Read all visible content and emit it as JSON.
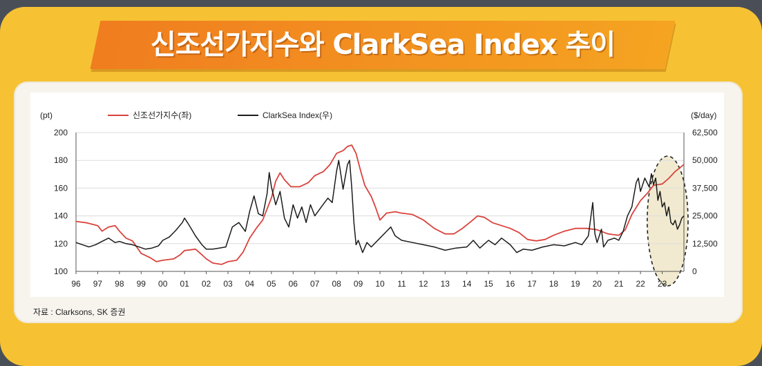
{
  "title": "신조선가지수와 ClarkSea Index 추이",
  "source": "자료 : Clarksons, SK 증권",
  "chart_data": {
    "type": "line",
    "left_axis_unit": "(pt)",
    "right_axis_unit": "($/day)",
    "left_ylim": [
      100,
      200
    ],
    "right_ylim": [
      0,
      62500
    ],
    "left_ticks": [
      "100",
      "120",
      "140",
      "160",
      "180",
      "200"
    ],
    "right_ticks": [
      "0",
      "12,500",
      "25,000",
      "37,500",
      "50,000",
      "62,500"
    ],
    "x_tick_labels": [
      "96",
      "97",
      "98",
      "99",
      "00",
      "01",
      "02",
      "03",
      "04",
      "05",
      "06",
      "07",
      "08",
      "09",
      "10",
      "11",
      "12",
      "13",
      "14",
      "15",
      "16",
      "17",
      "18",
      "19",
      "20",
      "21",
      "22",
      "23"
    ],
    "xlim": [
      1996,
      2024
    ],
    "grid": true,
    "legend_position": "top",
    "highlight": {
      "shape": "dashed-ellipse",
      "x_range": [
        2022.5,
        2024.0
      ]
    },
    "series": [
      {
        "name": "신조선가지수(좌)",
        "axis": "left",
        "color": "#d9423c",
        "points": [
          [
            1996.0,
            136
          ],
          [
            1996.5,
            135
          ],
          [
            1997.0,
            133
          ],
          [
            1997.2,
            129
          ],
          [
            1997.5,
            132
          ],
          [
            1997.8,
            133
          ],
          [
            1998.0,
            129
          ],
          [
            1998.3,
            124
          ],
          [
            1998.6,
            122
          ],
          [
            1999.0,
            113
          ],
          [
            1999.4,
            110
          ],
          [
            1999.7,
            107
          ],
          [
            2000.0,
            108
          ],
          [
            2000.5,
            109
          ],
          [
            2000.8,
            112
          ],
          [
            2001.0,
            115
          ],
          [
            2001.5,
            116
          ],
          [
            2001.8,
            112
          ],
          [
            2002.0,
            109
          ],
          [
            2002.3,
            106
          ],
          [
            2002.7,
            105
          ],
          [
            2003.0,
            107
          ],
          [
            2003.4,
            108
          ],
          [
            2003.7,
            114
          ],
          [
            2004.0,
            124
          ],
          [
            2004.3,
            131
          ],
          [
            2004.6,
            137
          ],
          [
            2005.0,
            153
          ],
          [
            2005.2,
            165
          ],
          [
            2005.4,
            171
          ],
          [
            2005.6,
            166
          ],
          [
            2005.9,
            161
          ],
          [
            2006.3,
            161
          ],
          [
            2006.7,
            164
          ],
          [
            2007.0,
            169
          ],
          [
            2007.4,
            172
          ],
          [
            2007.7,
            177
          ],
          [
            2008.0,
            185
          ],
          [
            2008.3,
            187
          ],
          [
            2008.5,
            190
          ],
          [
            2008.7,
            191
          ],
          [
            2008.9,
            185
          ],
          [
            2009.1,
            173
          ],
          [
            2009.3,
            162
          ],
          [
            2009.6,
            154
          ],
          [
            2009.8,
            146
          ],
          [
            2010.0,
            137
          ],
          [
            2010.3,
            142
          ],
          [
            2010.7,
            143
          ],
          [
            2011.0,
            142
          ],
          [
            2011.5,
            141
          ],
          [
            2012.0,
            137
          ],
          [
            2012.5,
            131
          ],
          [
            2013.0,
            127
          ],
          [
            2013.4,
            127
          ],
          [
            2013.8,
            131
          ],
          [
            2014.2,
            136
          ],
          [
            2014.5,
            140
          ],
          [
            2014.8,
            139
          ],
          [
            2015.2,
            135
          ],
          [
            2015.6,
            133
          ],
          [
            2016.0,
            131
          ],
          [
            2016.4,
            128
          ],
          [
            2016.8,
            123
          ],
          [
            2017.2,
            122
          ],
          [
            2017.6,
            123
          ],
          [
            2018.0,
            126
          ],
          [
            2018.5,
            129
          ],
          [
            2019.0,
            131
          ],
          [
            2019.5,
            131
          ],
          [
            2020.0,
            130
          ],
          [
            2020.5,
            127
          ],
          [
            2021.0,
            126
          ],
          [
            2021.3,
            130
          ],
          [
            2021.6,
            141
          ],
          [
            2022.0,
            151
          ],
          [
            2022.3,
            156
          ],
          [
            2022.6,
            162
          ],
          [
            2023.0,
            163
          ],
          [
            2023.3,
            167
          ],
          [
            2023.6,
            172
          ],
          [
            2024.0,
            177
          ]
        ]
      },
      {
        "name": "ClarkSea Index(우)",
        "axis": "right",
        "color": "#1a1a1a",
        "points": [
          [
            1996.0,
            13000
          ],
          [
            1996.3,
            12000
          ],
          [
            1996.6,
            11000
          ],
          [
            1996.9,
            12000
          ],
          [
            1997.2,
            13500
          ],
          [
            1997.5,
            15000
          ],
          [
            1997.8,
            13000
          ],
          [
            1998.0,
            13500
          ],
          [
            1998.3,
            12500
          ],
          [
            1998.6,
            12000
          ],
          [
            1998.9,
            11000
          ],
          [
            1999.2,
            10000
          ],
          [
            1999.5,
            10500
          ],
          [
            1999.8,
            11500
          ],
          [
            2000.0,
            14000
          ],
          [
            2000.3,
            15500
          ],
          [
            2000.6,
            18500
          ],
          [
            2000.9,
            22000
          ],
          [
            2001.0,
            24000
          ],
          [
            2001.2,
            21000
          ],
          [
            2001.5,
            16000
          ],
          [
            2001.8,
            12000
          ],
          [
            2002.0,
            10000
          ],
          [
            2002.3,
            10000
          ],
          [
            2002.6,
            10500
          ],
          [
            2002.9,
            11000
          ],
          [
            2003.0,
            14000
          ],
          [
            2003.2,
            20000
          ],
          [
            2003.5,
            22000
          ],
          [
            2003.8,
            18000
          ],
          [
            2004.0,
            27000
          ],
          [
            2004.2,
            34000
          ],
          [
            2004.4,
            26000
          ],
          [
            2004.6,
            25000
          ],
          [
            2004.8,
            35000
          ],
          [
            2004.9,
            44500
          ],
          [
            2005.0,
            38000
          ],
          [
            2005.2,
            30000
          ],
          [
            2005.4,
            36000
          ],
          [
            2005.6,
            24000
          ],
          [
            2005.8,
            20000
          ],
          [
            2006.0,
            30000
          ],
          [
            2006.2,
            24000
          ],
          [
            2006.4,
            29000
          ],
          [
            2006.6,
            22000
          ],
          [
            2006.8,
            30000
          ],
          [
            2007.0,
            25000
          ],
          [
            2007.3,
            29000
          ],
          [
            2007.6,
            33000
          ],
          [
            2007.8,
            31000
          ],
          [
            2008.0,
            45000
          ],
          [
            2008.1,
            50000
          ],
          [
            2008.3,
            37000
          ],
          [
            2008.5,
            48000
          ],
          [
            2008.6,
            50000
          ],
          [
            2008.7,
            38000
          ],
          [
            2008.8,
            22000
          ],
          [
            2008.9,
            12000
          ],
          [
            2009.0,
            14000
          ],
          [
            2009.2,
            8500
          ],
          [
            2009.4,
            13000
          ],
          [
            2009.6,
            11000
          ],
          [
            2010.0,
            15000
          ],
          [
            2010.3,
            18000
          ],
          [
            2010.5,
            20000
          ],
          [
            2010.7,
            16000
          ],
          [
            2011.0,
            14000
          ],
          [
            2011.5,
            13000
          ],
          [
            2012.0,
            12000
          ],
          [
            2012.5,
            11000
          ],
          [
            2013.0,
            9500
          ],
          [
            2013.5,
            10500
          ],
          [
            2014.0,
            11000
          ],
          [
            2014.3,
            14000
          ],
          [
            2014.6,
            10500
          ],
          [
            2015.0,
            14000
          ],
          [
            2015.3,
            12000
          ],
          [
            2015.6,
            15000
          ],
          [
            2016.0,
            12000
          ],
          [
            2016.3,
            8500
          ],
          [
            2016.6,
            10000
          ],
          [
            2017.0,
            9500
          ],
          [
            2017.5,
            11000
          ],
          [
            2018.0,
            12000
          ],
          [
            2018.5,
            11500
          ],
          [
            2019.0,
            13000
          ],
          [
            2019.3,
            12000
          ],
          [
            2019.6,
            16000
          ],
          [
            2019.8,
            31000
          ],
          [
            2019.9,
            17000
          ],
          [
            2020.0,
            13000
          ],
          [
            2020.2,
            19000
          ],
          [
            2020.3,
            11000
          ],
          [
            2020.5,
            14000
          ],
          [
            2020.8,
            15000
          ],
          [
            2021.0,
            14000
          ],
          [
            2021.2,
            18000
          ],
          [
            2021.4,
            25000
          ],
          [
            2021.6,
            29000
          ],
          [
            2021.8,
            40000
          ],
          [
            2021.9,
            42000
          ],
          [
            2022.0,
            36000
          ],
          [
            2022.2,
            42000
          ],
          [
            2022.4,
            38000
          ],
          [
            2022.5,
            44000
          ],
          [
            2022.6,
            39000
          ],
          [
            2022.7,
            42000
          ],
          [
            2022.8,
            32000
          ],
          [
            2022.9,
            36000
          ],
          [
            2023.0,
            29000
          ],
          [
            2023.1,
            31000
          ],
          [
            2023.2,
            25000
          ],
          [
            2023.3,
            29000
          ],
          [
            2023.4,
            22000
          ],
          [
            2023.5,
            21000
          ],
          [
            2023.6,
            23000
          ],
          [
            2023.7,
            19000
          ],
          [
            2023.8,
            21000
          ],
          [
            2023.9,
            24000
          ],
          [
            2024.0,
            25000
          ]
        ]
      }
    ]
  }
}
